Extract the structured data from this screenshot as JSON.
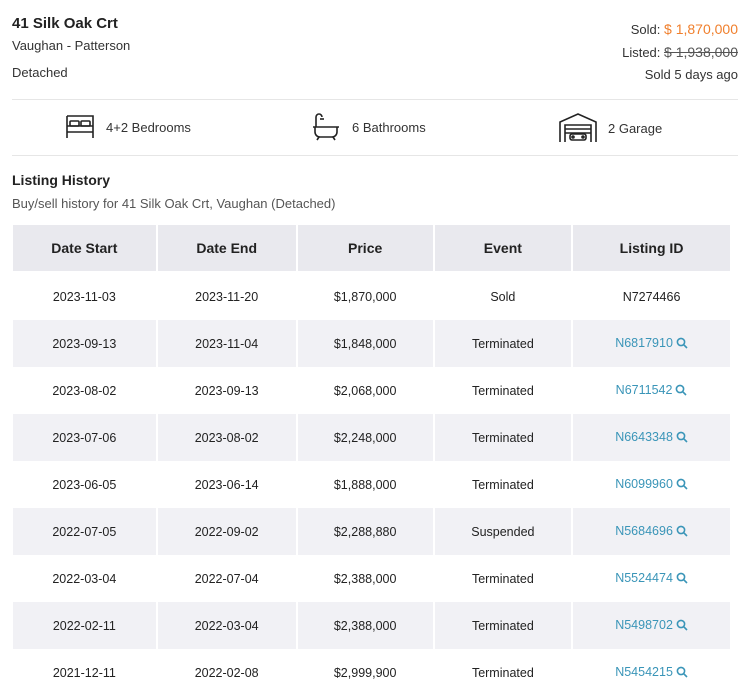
{
  "listing": {
    "address": "41 Silk Oak Crt",
    "area": "Vaughan - Patterson",
    "type": "Detached",
    "sold_label": "Sold:",
    "sold_price": "$ 1,870,000",
    "listed_label": "Listed:",
    "listed_price": "$ 1,938,000",
    "sold_ago": "Sold 5 days ago"
  },
  "features": {
    "bedrooms": "4+2 Bedrooms",
    "bathrooms": "6 Bathrooms",
    "garage": "2 Garage"
  },
  "history": {
    "title": "Listing History",
    "subtitle": "Buy/sell history for 41 Silk Oak Crt, Vaughan (Detached)",
    "headers": [
      "Date Start",
      "Date End",
      "Price",
      "Event",
      "Listing ID"
    ],
    "rows": [
      {
        "start": "2023-11-03",
        "end": "2023-11-20",
        "price": "$1,870,000",
        "event": "Sold",
        "id": "N7274466",
        "link": false
      },
      {
        "start": "2023-09-13",
        "end": "2023-11-04",
        "price": "$1,848,000",
        "event": "Terminated",
        "id": "N6817910",
        "link": true
      },
      {
        "start": "2023-08-02",
        "end": "2023-09-13",
        "price": "$2,068,000",
        "event": "Terminated",
        "id": "N6711542",
        "link": true
      },
      {
        "start": "2023-07-06",
        "end": "2023-08-02",
        "price": "$2,248,000",
        "event": "Terminated",
        "id": "N6643348",
        "link": true
      },
      {
        "start": "2023-06-05",
        "end": "2023-06-14",
        "price": "$1,888,000",
        "event": "Terminated",
        "id": "N6099960",
        "link": true
      },
      {
        "start": "2022-07-05",
        "end": "2022-09-02",
        "price": "$2,288,880",
        "event": "Suspended",
        "id": "N5684696",
        "link": true
      },
      {
        "start": "2022-03-04",
        "end": "2022-07-04",
        "price": "$2,388,000",
        "event": "Terminated",
        "id": "N5524474",
        "link": true
      },
      {
        "start": "2022-02-11",
        "end": "2022-03-04",
        "price": "$2,388,000",
        "event": "Terminated",
        "id": "N5498702",
        "link": true
      },
      {
        "start": "2021-12-11",
        "end": "2022-02-08",
        "price": "$2,999,900",
        "event": "Terminated",
        "id": "N5454215",
        "link": true
      }
    ]
  },
  "colors": {
    "sold_price": "#f07f2c",
    "link": "#3a95b8",
    "header_bg": "#e9e9ee",
    "row_shade": "#f1f1f5"
  }
}
